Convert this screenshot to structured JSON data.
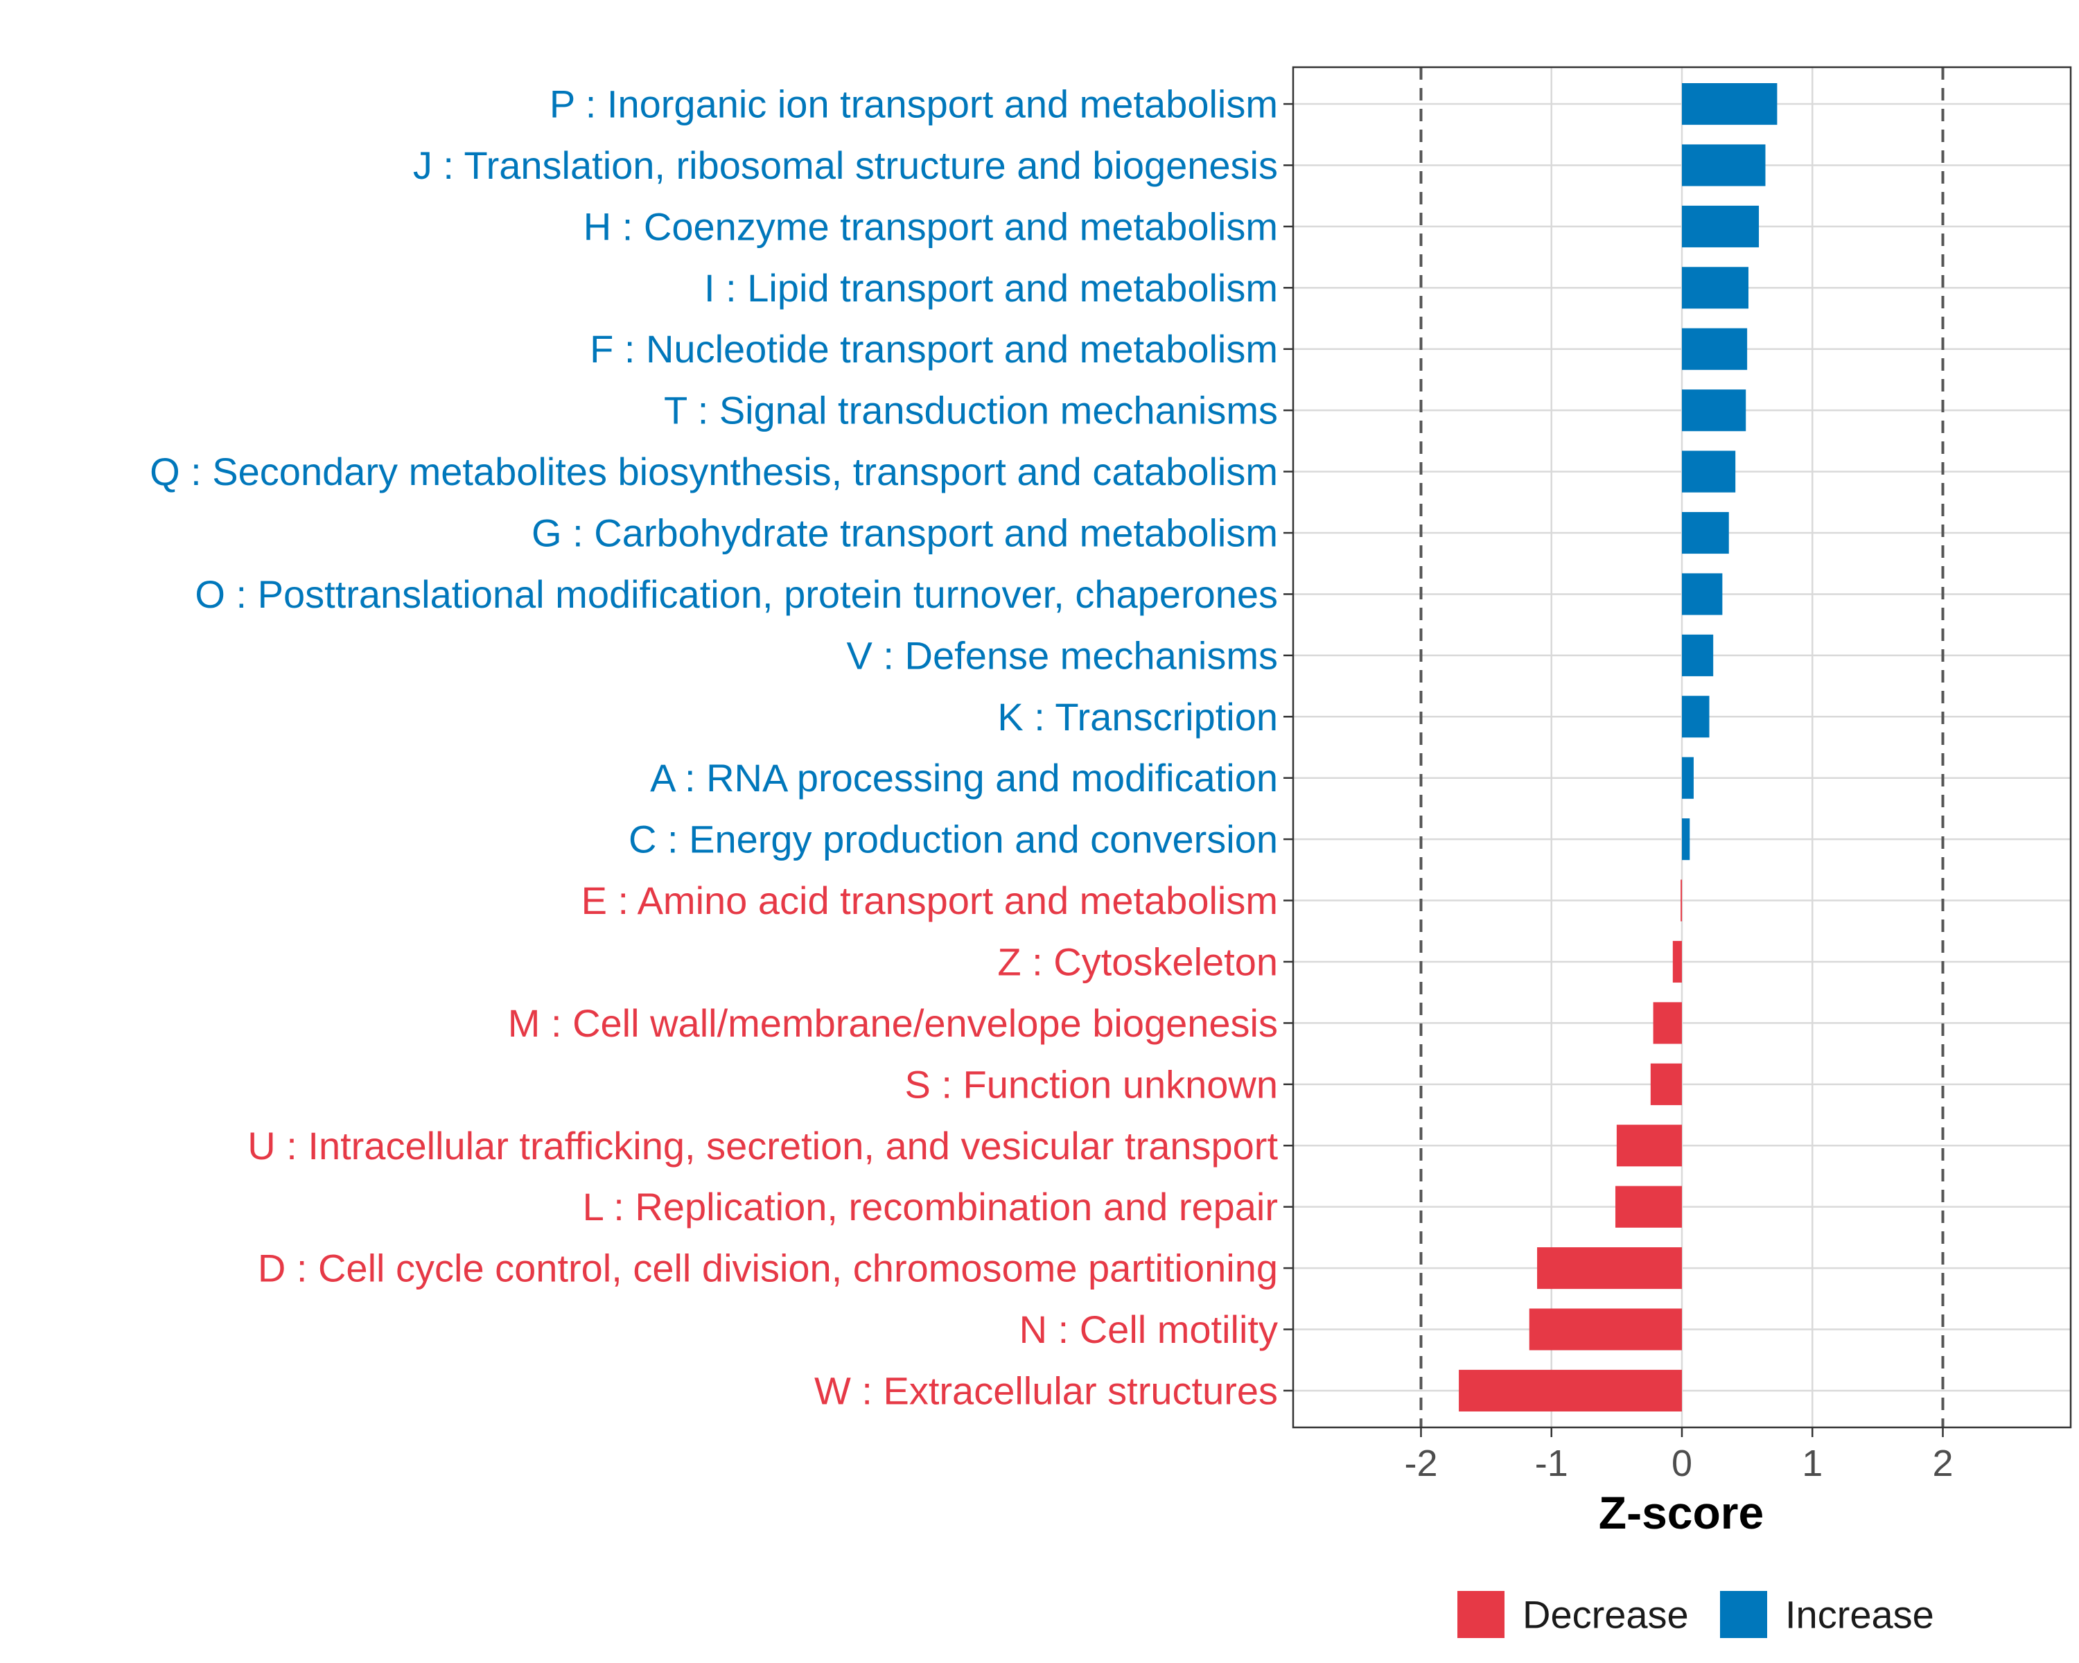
{
  "chart_data": {
    "type": "bar",
    "orientation": "horizontal",
    "xlabel": "Z-score",
    "xlim": [
      -2.98,
      2.98
    ],
    "xticks": [
      -2,
      -1,
      0,
      1,
      2
    ],
    "xtick_labels": [
      "-2",
      "-1",
      "0",
      "1",
      "2"
    ],
    "reference_lines": [
      -2,
      2
    ],
    "grid": true,
    "legend_position": "bottom",
    "colors": {
      "Decrease": "#E63946",
      "Increase": "#0077BB"
    },
    "legend": [
      {
        "name": "Decrease",
        "color": "#E63946"
      },
      {
        "name": "Increase",
        "color": "#0077BB"
      }
    ],
    "categories": [
      "P : Inorganic ion transport and metabolism",
      "J : Translation, ribosomal structure and biogenesis",
      "H : Coenzyme transport and metabolism",
      "I : Lipid transport and metabolism",
      "F : Nucleotide transport and metabolism",
      "T : Signal transduction mechanisms",
      "Q : Secondary metabolites biosynthesis, transport and catabolism",
      "G : Carbohydrate transport and metabolism",
      "O : Posttranslational modification, protein turnover, chaperones",
      "V : Defense mechanisms",
      "K : Transcription",
      "A : RNA processing and modification",
      "C : Energy production and conversion",
      "E : Amino acid transport and metabolism",
      "Z : Cytoskeleton",
      "M : Cell wall/membrane/envelope biogenesis",
      "S : Function unknown",
      "U : Intracellular trafficking, secretion, and vesicular transport",
      "L : Replication, recombination and repair",
      "D : Cell cycle control, cell division, chromosome partitioning",
      "N : Cell motility",
      "W : Extracellular structures"
    ],
    "values": [
      0.73,
      0.64,
      0.59,
      0.51,
      0.5,
      0.49,
      0.41,
      0.36,
      0.31,
      0.24,
      0.21,
      0.09,
      0.06,
      -0.01,
      -0.07,
      -0.22,
      -0.24,
      -0.5,
      -0.51,
      -1.11,
      -1.17,
      -1.71
    ],
    "groups": [
      "Increase",
      "Increase",
      "Increase",
      "Increase",
      "Increase",
      "Increase",
      "Increase",
      "Increase",
      "Increase",
      "Increase",
      "Increase",
      "Increase",
      "Increase",
      "Decrease",
      "Decrease",
      "Decrease",
      "Decrease",
      "Decrease",
      "Decrease",
      "Decrease",
      "Decrease",
      "Decrease"
    ]
  }
}
